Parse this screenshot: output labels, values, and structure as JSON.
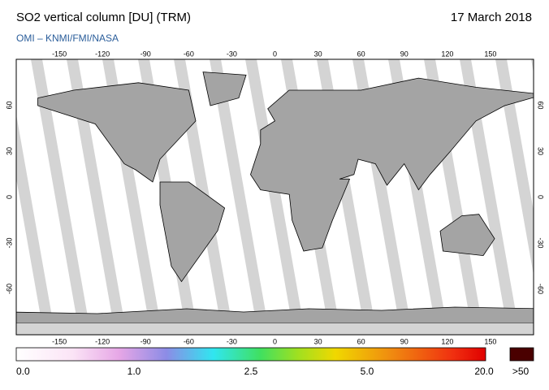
{
  "header": {
    "title": "SO2 vertical column [DU] (TRM)",
    "date": "17 March 2018",
    "credit": "OMI  –  KNMI/FMI/NASA"
  },
  "map": {
    "longitudes": [
      -150,
      -120,
      -90,
      -60,
      -30,
      0,
      30,
      60,
      90,
      120,
      150
    ],
    "latitudes": [
      60,
      30,
      0,
      -30,
      -60
    ]
  },
  "colorbar": {
    "labels": [
      "0.0",
      "1.0",
      "2.5",
      "5.0",
      "20.0"
    ],
    "overflow_label": ">50"
  }
}
